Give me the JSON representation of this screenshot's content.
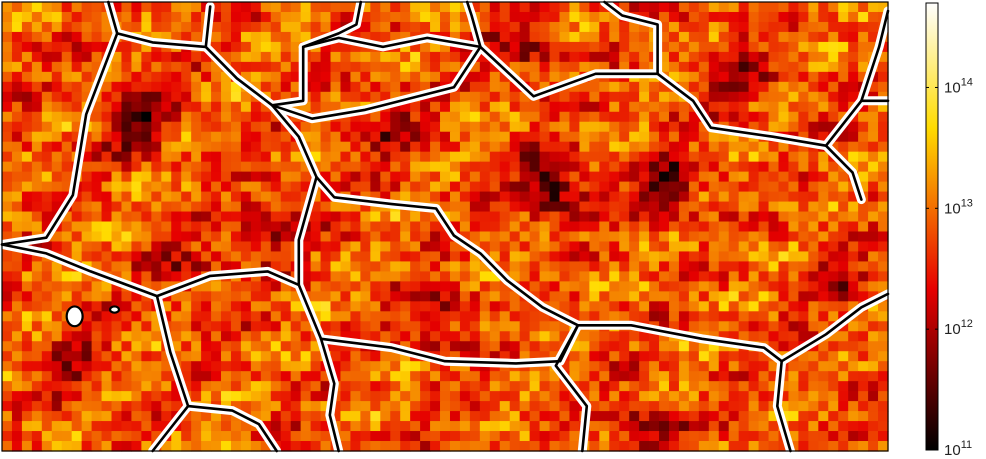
{
  "chart_data": {
    "type": "heatmap",
    "title": "",
    "xlabel": "",
    "ylabel": "",
    "scale": "log",
    "colormap": "hot",
    "colorbar": {
      "position": "right",
      "range": [
        100000000000.0,
        500000000000000.0
      ],
      "ticks": [
        {
          "value": 100000000000.0,
          "base": "10",
          "exponent": "11"
        },
        {
          "value": 1000000000000.0,
          "base": "10",
          "exponent": "12"
        },
        {
          "value": 10000000000000.0,
          "base": "10",
          "exponent": "13"
        },
        {
          "value": 100000000000000.0,
          "base": "10",
          "exponent": "14"
        }
      ]
    },
    "field": {
      "background_log_value": 12.85,
      "minima": [
        {
          "x": 0.15,
          "y": 0.26,
          "log_value": 11.6
        },
        {
          "x": 0.62,
          "y": 0.41,
          "log_value": 11.4
        },
        {
          "x": 0.75,
          "y": 0.41,
          "log_value": 11.7
        },
        {
          "x": 0.44,
          "y": 0.28,
          "log_value": 12.1
        },
        {
          "x": 0.59,
          "y": 0.1,
          "log_value": 12.0
        },
        {
          "x": 0.83,
          "y": 0.15,
          "log_value": 12.1
        },
        {
          "x": 0.49,
          "y": 0.7,
          "log_value": 11.9
        },
        {
          "x": 0.73,
          "y": 0.96,
          "log_value": 11.8
        },
        {
          "x": 0.3,
          "y": 0.5,
          "log_value": 12.0
        },
        {
          "x": 0.08,
          "y": 0.82,
          "log_value": 12.1
        },
        {
          "x": 0.94,
          "y": 0.62,
          "log_value": 12.2
        },
        {
          "x": 0.21,
          "y": 0.6,
          "log_value": 12.2
        }
      ],
      "noise_amplitude": 0.55
    },
    "grain_boundaries": [
      [
        [
          0,
          0.54
        ],
        [
          0.05,
          0.525
        ],
        [
          0.08,
          0.43
        ],
        [
          0.095,
          0.25
        ],
        [
          0.13,
          0.07
        ],
        [
          0.17,
          0.09
        ],
        [
          0.23,
          0.1
        ],
        [
          0.265,
          0.17
        ],
        [
          0.305,
          0.23
        ],
        [
          0.34,
          0.22
        ],
        [
          0.34,
          0.1
        ],
        [
          0.38,
          0.07
        ],
        [
          0.4,
          0.05
        ],
        [
          0.405,
          0.0
        ]
      ],
      [
        [
          0.12,
          0.0
        ],
        [
          0.13,
          0.07
        ]
      ],
      [
        [
          0.23,
          0.1
        ],
        [
          0.235,
          0.01
        ]
      ],
      [
        [
          0.305,
          0.23
        ],
        [
          0.35,
          0.26
        ],
        [
          0.41,
          0.24
        ],
        [
          0.48,
          0.205
        ],
        [
          0.51,
          0.19
        ],
        [
          0.54,
          0.1
        ],
        [
          0.53,
          0.03
        ],
        [
          0.525,
          0.0
        ]
      ],
      [
        [
          0.34,
          0.1
        ],
        [
          0.38,
          0.08
        ],
        [
          0.43,
          0.1
        ],
        [
          0.48,
          0.08
        ],
        [
          0.54,
          0.1
        ]
      ],
      [
        [
          0.305,
          0.23
        ],
        [
          0.335,
          0.3
        ],
        [
          0.355,
          0.39
        ],
        [
          0.375,
          0.435
        ],
        [
          0.44,
          0.45
        ],
        [
          0.49,
          0.46
        ],
        [
          0.51,
          0.52
        ],
        [
          0.54,
          0.56
        ],
        [
          0.57,
          0.62
        ],
        [
          0.61,
          0.68
        ],
        [
          0.65,
          0.72
        ]
      ],
      [
        [
          0.54,
          0.1
        ],
        [
          0.6,
          0.21
        ],
        [
          0.67,
          0.16
        ],
        [
          0.74,
          0.16
        ],
        [
          0.74,
          0.05
        ],
        [
          0.7,
          0.03
        ],
        [
          0.68,
          0.0
        ]
      ],
      [
        [
          0.74,
          0.16
        ],
        [
          0.78,
          0.22
        ],
        [
          0.8,
          0.28
        ],
        [
          0.87,
          0.3
        ],
        [
          0.93,
          0.32
        ],
        [
          0.97,
          0.22
        ],
        [
          1.0,
          0.22
        ]
      ],
      [
        [
          0.97,
          0.22
        ],
        [
          0.99,
          0.1
        ],
        [
          1.0,
          0.02
        ]
      ],
      [
        [
          0.93,
          0.32
        ],
        [
          0.96,
          0.38
        ],
        [
          0.97,
          0.44
        ]
      ],
      [
        [
          0.355,
          0.39
        ],
        [
          0.335,
          0.53
        ],
        [
          0.335,
          0.63
        ],
        [
          0.36,
          0.75
        ]
      ],
      [
        [
          0.36,
          0.75
        ],
        [
          0.44,
          0.77
        ],
        [
          0.5,
          0.8
        ],
        [
          0.58,
          0.805
        ],
        [
          0.63,
          0.8
        ],
        [
          0.65,
          0.72
        ]
      ],
      [
        [
          0.65,
          0.72
        ],
        [
          0.71,
          0.72
        ],
        [
          0.79,
          0.75
        ],
        [
          0.86,
          0.77
        ],
        [
          0.88,
          0.8
        ]
      ],
      [
        [
          0.88,
          0.8
        ],
        [
          0.93,
          0.74
        ],
        [
          0.97,
          0.68
        ],
        [
          1.0,
          0.65
        ]
      ],
      [
        [
          0.88,
          0.8
        ],
        [
          0.875,
          0.9
        ],
        [
          0.89,
          1.0
        ]
      ],
      [
        [
          0.65,
          0.72
        ],
        [
          0.625,
          0.81
        ],
        [
          0.66,
          0.9
        ],
        [
          0.655,
          1.0
        ]
      ],
      [
        [
          0.0,
          0.54
        ],
        [
          0.05,
          0.56
        ],
        [
          0.1,
          0.6
        ],
        [
          0.175,
          0.655
        ],
        [
          0.235,
          0.61
        ],
        [
          0.3,
          0.6
        ],
        [
          0.335,
          0.63
        ]
      ],
      [
        [
          0.175,
          0.655
        ],
        [
          0.19,
          0.78
        ],
        [
          0.21,
          0.9
        ],
        [
          0.19,
          0.95
        ],
        [
          0.17,
          1.0
        ]
      ],
      [
        [
          0.21,
          0.9
        ],
        [
          0.26,
          0.91
        ],
        [
          0.29,
          0.94
        ],
        [
          0.31,
          1.0
        ]
      ],
      [
        [
          0.36,
          0.75
        ],
        [
          0.375,
          0.85
        ],
        [
          0.37,
          0.92
        ],
        [
          0.38,
          1.0
        ]
      ]
    ],
    "small_loops": [
      {
        "cx": 0.082,
        "cy": 0.7,
        "rx": 0.009,
        "ry": 0.022
      },
      {
        "cx": 0.127,
        "cy": 0.685,
        "rx": 0.005,
        "ry": 0.007
      }
    ]
  }
}
